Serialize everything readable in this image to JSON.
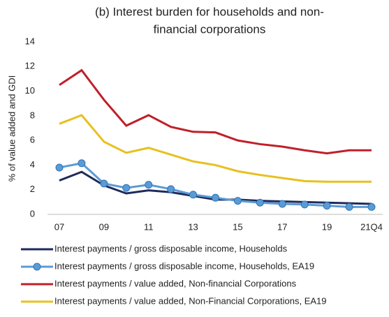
{
  "chart_data": {
    "type": "line",
    "title": [
      "(b) Interest burden for households and non-",
      "financial corporations"
    ],
    "y_label": "% of value added and GDI",
    "categories": [
      "07",
      null,
      "09",
      null,
      "11",
      null,
      "13",
      null,
      "15",
      null,
      "17",
      null,
      "19",
      null,
      "21Q4"
    ],
    "ylim": [
      0,
      14
    ],
    "yticks": [
      0,
      2,
      4,
      6,
      8,
      10,
      12,
      14
    ],
    "grid": false,
    "legend": "bottom",
    "series": [
      {
        "name": "Interest payments / gross disposable income, Households",
        "color": "#1f2a5c",
        "marker": null,
        "values": [
          2.75,
          3.45,
          2.35,
          1.7,
          1.95,
          1.8,
          1.5,
          1.2,
          1.2,
          1.1,
          1.05,
          1.0,
          0.95,
          0.9,
          0.85
        ]
      },
      {
        "name": "Interest payments / gross disposable income, Households, EA19",
        "color": "#5b9bd5",
        "marker": "circle",
        "values": [
          3.8,
          4.15,
          2.5,
          2.15,
          2.4,
          2.05,
          1.6,
          1.35,
          1.1,
          0.95,
          0.85,
          0.8,
          0.7,
          0.6,
          0.6
        ]
      },
      {
        "name": "Interest payments / value added, Non-financial Corporations",
        "color": "#c0202a",
        "marker": null,
        "values": [
          10.5,
          11.7,
          9.3,
          7.2,
          8.05,
          7.1,
          6.7,
          6.65,
          6.0,
          5.7,
          5.5,
          5.2,
          4.95,
          5.2,
          5.2
        ]
      },
      {
        "name": "Interest payments / value added, Non-Financial Corporations, EA19",
        "color": "#e8c020",
        "marker": null,
        "values": [
          7.35,
          8.05,
          5.9,
          5.0,
          5.4,
          4.85,
          4.3,
          4.0,
          3.5,
          3.2,
          2.95,
          2.7,
          2.65,
          2.65,
          2.65
        ]
      }
    ]
  }
}
